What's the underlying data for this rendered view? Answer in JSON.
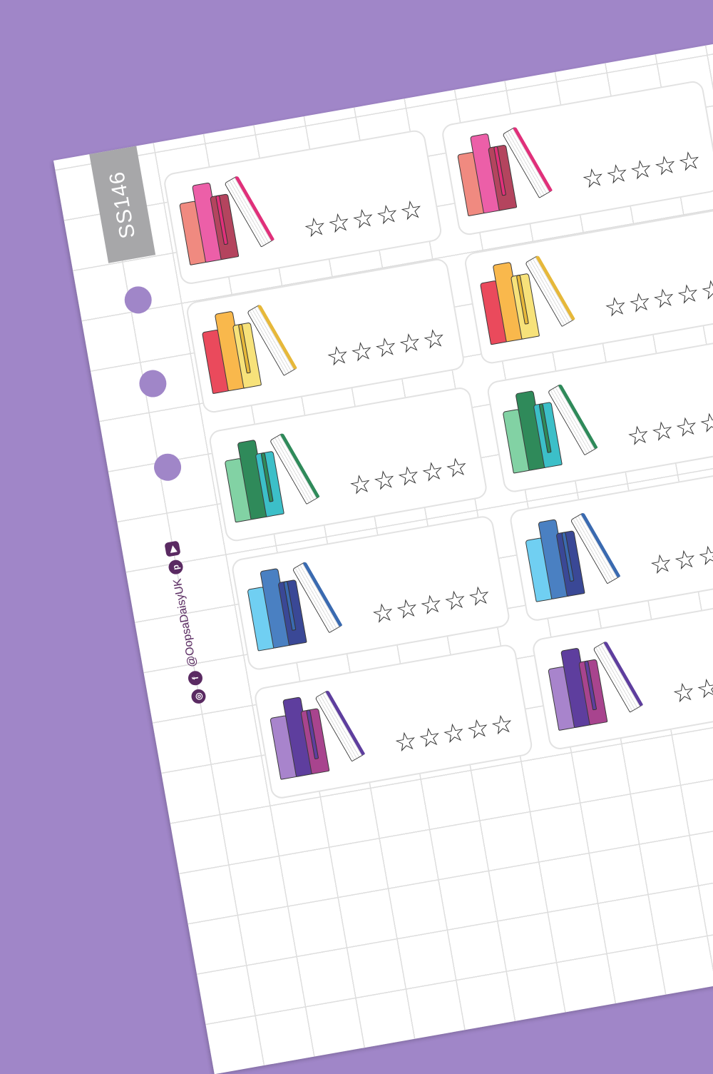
{
  "sheet": {
    "code": "SS146",
    "social_handle": "@OopsaDaisyUK",
    "social_icons": [
      "youtube-icon",
      "pinterest-icon",
      "facebook-icon",
      "instagram-icon"
    ],
    "background_color": "#a086c8"
  },
  "rating_max": 5,
  "rating_value": 0,
  "rows": [
    {
      "theme": "pink",
      "colors": [
        "#f08a80",
        "#ec5fa8",
        "#b4445e"
      ],
      "page_edge": "#e0307a"
    },
    {
      "theme": "warm",
      "colors": [
        "#ea4a5c",
        "#f9b84c",
        "#f7e27a"
      ],
      "page_edge": "#e6b83a"
    },
    {
      "theme": "green",
      "colors": [
        "#82d2a4",
        "#2f8a5a",
        "#3cbfc8"
      ],
      "page_edge": "#2f8a5a"
    },
    {
      "theme": "blue",
      "colors": [
        "#70cff2",
        "#4a80c2",
        "#3a4896"
      ],
      "page_edge": "#3a6ab0"
    },
    {
      "theme": "purple",
      "colors": [
        "#a884cc",
        "#5e3e9e",
        "#a8448e"
      ],
      "page_edge": "#5e3e9e"
    }
  ]
}
